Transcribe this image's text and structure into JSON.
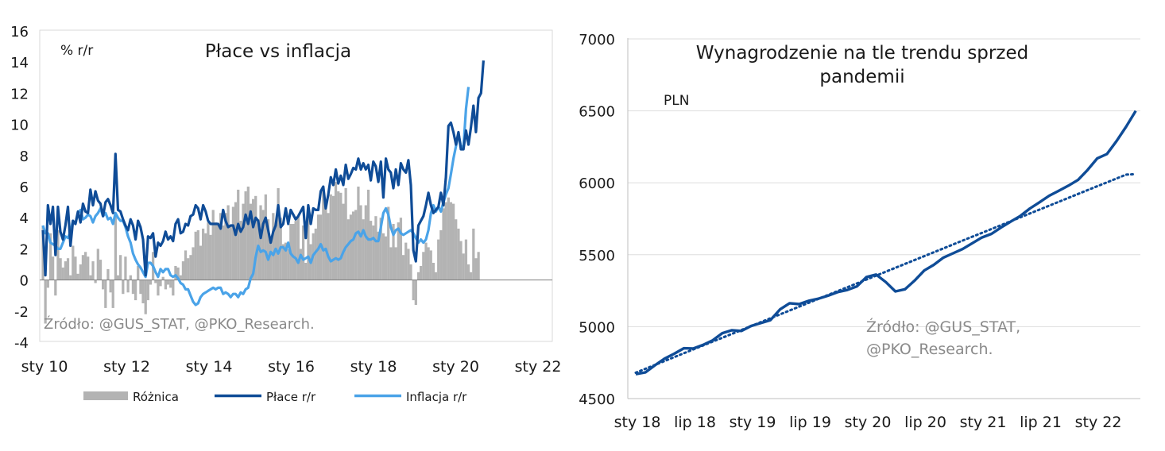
{
  "chart_data": [
    {
      "type": "line",
      "title": "Płace vs inflacja",
      "unit_label": "% r/r",
      "source": "Źródło: @GUS_STAT, @PKO_Research.",
      "ylim": [
        -4,
        16
      ],
      "y_ticks": [
        "16",
        "14",
        "12",
        "10",
        "8",
        "6",
        "4",
        "2",
        "0",
        "-2",
        "-4"
      ],
      "x_ticks": [
        "sty 10",
        "sty 12",
        "sty 14",
        "sty 16",
        "sty 18",
        "sty 20",
        "sty 22"
      ],
      "x_start": "2010-01",
      "grid": false,
      "legend_position": "bottom",
      "series": [
        {
          "name": "Różnica",
          "kind": "area",
          "color": "#b3b3b3",
          "values": [
            3.5,
            -2.8,
            -0.5,
            3.0,
            1.5,
            -1.0,
            3.2,
            1.4,
            0.8,
            1.2,
            1.4,
            0.3,
            2.2,
            1.5,
            0.4,
            1.0,
            1.6,
            1.8,
            1.5,
            0.3,
            1.2,
            -0.2,
            2.0,
            1.3,
            -0.6,
            -1.8,
            0.7,
            -0.8,
            -1.8,
            4.3,
            0.3,
            1.6,
            -0.9,
            1.5,
            -0.8,
            0.3,
            -0.9,
            -1.3,
            0.9,
            -0.9,
            -1.5,
            -2.2,
            -1.3,
            -0.3,
            1.8,
            -0.2,
            -1.0,
            -0.4,
            0.2,
            -0.6,
            -0.3,
            -0.5,
            -1.0,
            0.9,
            0.8,
            0.3,
            1.2,
            1.9,
            1.4,
            1.6,
            2.1,
            3.1,
            3.2,
            2.2,
            3.3,
            3.0,
            3.7,
            2.9,
            4.5,
            3.7,
            3.6,
            4.3,
            3.5,
            4.3,
            4.8,
            3.5,
            4.7,
            5.0,
            5.8,
            3.8,
            4.9,
            5.7,
            6.0,
            4.9,
            5.2,
            5.4,
            3.9,
            4.8,
            4.5,
            5.5,
            3.9,
            2.6,
            4.3,
            3.5,
            5.9,
            4.0,
            2.3,
            2.4,
            2.0,
            3.6,
            3.6,
            3.8,
            4.1,
            2.0,
            3.5,
            1.1,
            4.3,
            2.3,
            3.0,
            3.3,
            4.2,
            4.2,
            5.8,
            4.7,
            4.3,
            5.5,
            5.4,
            6.3,
            5.7,
            5.6,
            4.9,
            5.9,
            3.9,
            4.2,
            4.4,
            4.5,
            6.0,
            4.8,
            3.9,
            4.8,
            5.8,
            3.8,
            3.5,
            4.1,
            3.1,
            4.0,
            3.0,
            2.8,
            4.7,
            2.1,
            3.6,
            2.1,
            3.7,
            4.0,
            1.6,
            2.4,
            2.0,
            1.0,
            -1.3,
            -1.6,
            0.5,
            0.9,
            1.8,
            2.4,
            2.1,
            1.9,
            1.1,
            0.5,
            2.6,
            3.2,
            4.6,
            5.0,
            5.3,
            5.0,
            4.9,
            3.9,
            3.3,
            2.5,
            1.7,
            2.6,
            1.0,
            0.5,
            3.3,
            1.4,
            1.8
          ]
        },
        {
          "name": "Płace r/r",
          "kind": "line",
          "color": "#0f4c97",
          "values": [
            3.2,
            0.3,
            4.8,
            3.6,
            4.7,
            1.6,
            4.7,
            3.1,
            2.6,
            3.5,
            4.7,
            2.2,
            3.8,
            3.6,
            4.4,
            3.7,
            4.9,
            4.4,
            4.3,
            5.8,
            4.8,
            5.7,
            5.1,
            4.9,
            4.1,
            5.0,
            5.2,
            4.8,
            4.3,
            8.1,
            4.5,
            4.4,
            3.9,
            3.5,
            3.2,
            3.9,
            3.5,
            2.6,
            3.8,
            3.4,
            2.6,
            0.3,
            2.8,
            2.7,
            3.0,
            1.5,
            2.4,
            2.2,
            2.5,
            3.1,
            2.6,
            2.8,
            2.5,
            3.6,
            3.9,
            3.0,
            3.1,
            3.6,
            3.5,
            4.1,
            4.2,
            4.8,
            4.6,
            3.9,
            4.8,
            4.4,
            3.8,
            3.6,
            3.6,
            3.6,
            3.6,
            3.3,
            4.5,
            3.8,
            3.4,
            3.5,
            3.5,
            2.9,
            3.6,
            3.1,
            3.4,
            4.2,
            3.6,
            4.4,
            3.4,
            4.0,
            3.8,
            2.7,
            3.6,
            4.0,
            3.2,
            2.4,
            3.1,
            3.5,
            4.8,
            3.4,
            3.6,
            4.6,
            3.6,
            4.5,
            4.2,
            3.9,
            4.1,
            4.4,
            4.7,
            2.7,
            4.8,
            3.6,
            4.6,
            4.5,
            4.5,
            5.7,
            6.0,
            4.6,
            5.5,
            6.6,
            6.1,
            7.1,
            6.2,
            6.7,
            6.1,
            7.4,
            6.5,
            6.8,
            7.2,
            7.1,
            7.8,
            7.1,
            7.5,
            7.1,
            7.4,
            6.4,
            7.6,
            7.3,
            6.3,
            7.6,
            5.3,
            7.8,
            7.1,
            6.9,
            5.9,
            7.1,
            6.1,
            7.5,
            7.1,
            6.9,
            7.7,
            6.1,
            1.9,
            1.2,
            3.5,
            3.8,
            4.1,
            4.8,
            5.6,
            4.8,
            4.3,
            4.5,
            4.7,
            5.6,
            4.8,
            6.6,
            9.9,
            10.1,
            9.5,
            8.7,
            9.5,
            8.4,
            8.4,
            9.6,
            8.7,
            9.8,
            11.2,
            9.5,
            11.7,
            12.0,
            14.1
          ]
        },
        {
          "name": "Inflacja r/r",
          "kind": "line",
          "color": "#4aa3e8",
          "values": [
            3.5,
            3.0,
            3.0,
            2.4,
            2.3,
            2.2,
            2.0,
            2.0,
            2.4,
            2.8,
            2.7,
            3.1,
            3.8,
            3.6,
            4.3,
            4.5,
            3.9,
            4.0,
            4.2,
            4.1,
            3.7,
            4.1,
            4.3,
            4.6,
            4.1,
            4.3,
            3.9,
            4.0,
            3.6,
            4.3,
            4.0,
            3.8,
            3.8,
            3.4,
            2.8,
            2.4,
            1.7,
            1.3,
            1.0,
            0.8,
            0.5,
            0.2,
            1.1,
            1.1,
            0.9,
            0.5,
            0.2,
            0.7,
            0.5,
            0.7,
            0.7,
            0.3,
            0.2,
            0.3,
            0.1,
            -0.2,
            -0.3,
            -0.6,
            -0.6,
            -1.0,
            -1.4,
            -1.6,
            -1.5,
            -1.1,
            -0.9,
            -0.8,
            -0.7,
            -0.6,
            -0.5,
            -0.6,
            -0.5,
            -0.5,
            -0.9,
            -0.8,
            -0.9,
            -1.1,
            -0.9,
            -0.9,
            -1.1,
            -0.8,
            -0.9,
            -0.6,
            -0.5,
            0.1,
            0.4,
            1.5,
            2.2,
            1.8,
            1.9,
            1.8,
            1.3,
            1.8,
            1.6,
            2.0,
            1.7,
            2.1,
            2.1,
            1.9,
            2.4,
            1.7,
            1.5,
            1.4,
            1.1,
            1.6,
            1.3,
            1.4,
            1.5,
            1.1,
            1.6,
            1.8,
            2.0,
            2.3,
            1.9,
            2.0,
            1.5,
            1.2,
            1.3,
            1.4,
            1.3,
            1.4,
            1.8,
            2.1,
            2.3,
            2.5,
            2.6,
            3.0,
            3.1,
            2.8,
            3.2,
            2.8,
            2.6,
            2.6,
            2.7,
            2.5,
            2.5,
            3.4,
            4.3,
            4.6,
            4.2,
            3.4,
            2.9,
            3.2,
            3.3,
            3.0,
            2.9,
            3.0,
            3.1,
            3.2,
            3.0,
            2.7,
            2.4,
            2.6,
            2.4,
            2.6,
            3.2,
            4.3,
            4.8,
            4.4,
            4.7,
            4.4,
            5.0,
            5.5,
            5.9,
            6.8,
            7.8,
            8.6,
            9.4,
            8.6,
            8.5,
            11.0,
            12.4
          ]
        }
      ]
    },
    {
      "type": "line",
      "title": "Wynagrodzenie na tle trendu sprzed pandemii",
      "unit_label": "PLN",
      "source_line1": "Źródło: @GUS_STAT,",
      "source_line2": "@PKO_Research.",
      "ylim": [
        4500,
        7000
      ],
      "y_ticks": [
        "7000",
        "6500",
        "6000",
        "5500",
        "5000",
        "4500"
      ],
      "x_ticks": [
        "sty 18",
        "lip 18",
        "sty 19",
        "lip 19",
        "sty 20",
        "lip 20",
        "sty 21",
        "lip 21",
        "sty 22"
      ],
      "x_start": "2018-01",
      "grid": true,
      "legend_position": "none",
      "series": [
        {
          "kind": "line",
          "color": "#0f4c97",
          "values": [
            4670,
            4682,
            4732,
            4778,
            4812,
            4850,
            4848,
            4873,
            4905,
            4955,
            4975,
            4970,
            5005,
            5025,
            5045,
            5120,
            5163,
            5157,
            5180,
            5195,
            5215,
            5240,
            5255,
            5280,
            5345,
            5362,
            5310,
            5245,
            5260,
            5320,
            5390,
            5430,
            5480,
            5510,
            5540,
            5580,
            5620,
            5645,
            5690,
            5730,
            5770,
            5822,
            5865,
            5910,
            5945,
            5980,
            6020,
            6090,
            6170,
            6200,
            6290,
            6390,
            6500
          ]
        },
        {
          "kind": "trend",
          "style": "dotted",
          "color": "#0f4c97",
          "values": [
            4680,
            4707,
            4734,
            4761,
            4788,
            4815,
            4842,
            4869,
            4896,
            4923,
            4950,
            4977,
            5004,
            5031,
            5058,
            5085,
            5112,
            5139,
            5166,
            5193,
            5220,
            5247,
            5274,
            5301,
            5328,
            5355,
            5382,
            5409,
            5436,
            5463,
            5490,
            5517,
            5544,
            5571,
            5598,
            5625,
            5652,
            5679,
            5706,
            5733,
            5760,
            5787,
            5814,
            5841,
            5868,
            5895,
            5922,
            5949,
            5976,
            6003,
            6030,
            6057,
            6060
          ]
        }
      ]
    }
  ]
}
